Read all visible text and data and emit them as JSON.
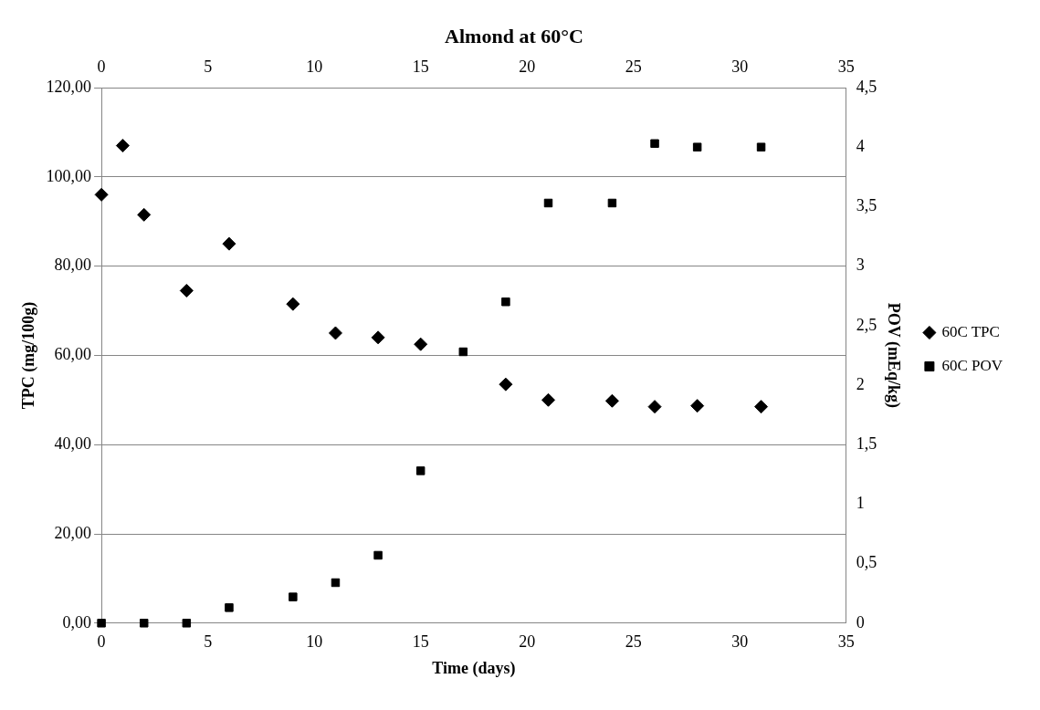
{
  "chart_data": {
    "type": "scatter",
    "title": "Almond at 60°C",
    "xlabel": "Time (days)",
    "ylabel": "TPC (mg/100g)",
    "y2label": "POV (mEq/kg)",
    "series": [
      {
        "name": "60C TPC",
        "color": "#000000",
        "marker": "diamond",
        "x": [
          0,
          1,
          2,
          4,
          6,
          9,
          11,
          13,
          15,
          17,
          19,
          21,
          24,
          26,
          28,
          31
        ],
        "values": [
          96,
          107,
          91.5,
          74.5,
          85,
          71.5,
          65,
          64,
          62.5,
          null,
          53.5,
          50,
          49.8,
          48.5,
          48.7,
          48.5
        ]
      },
      {
        "name": "60C POV",
        "color": "#000000",
        "marker": "square",
        "axis": "y2",
        "x": [
          0,
          2,
          4,
          6,
          9,
          11,
          13,
          15,
          17,
          19,
          21,
          24,
          26,
          28,
          31
        ],
        "values": [
          0,
          0,
          0,
          0.13,
          0.22,
          0.34,
          0.57,
          1.28,
          2.28,
          2.7,
          3.53,
          3.53,
          4.03,
          4.0,
          4.0
        ]
      }
    ],
    "xlim": [
      0,
      35
    ],
    "xticks": [
      0,
      5,
      10,
      15,
      20,
      25,
      30,
      35
    ],
    "x2lim": [
      0,
      35
    ],
    "x2ticks": [
      0,
      5,
      10,
      15,
      20,
      25,
      30,
      35
    ],
    "ylim": [
      0,
      120
    ],
    "yticks": [
      {
        "value": 0,
        "label": "0,00"
      },
      {
        "value": 20,
        "label": "20,00"
      },
      {
        "value": 40,
        "label": "40,00"
      },
      {
        "value": 60,
        "label": "60,00"
      },
      {
        "value": 80,
        "label": "80,00"
      },
      {
        "value": 100,
        "label": "100,00"
      },
      {
        "value": 120,
        "label": "120,00"
      }
    ],
    "y2lim": [
      0,
      4.5
    ],
    "y2ticks": [
      0,
      {
        "value": 0.5,
        "label": "0,5"
      },
      1,
      {
        "value": 1.5,
        "label": "1,5"
      },
      2,
      {
        "value": 2.5,
        "label": "2,5"
      },
      3,
      {
        "value": 3.5,
        "label": "3,5"
      },
      4,
      {
        "value": 4.5,
        "label": "4,5"
      }
    ],
    "grid": "y",
    "legend": "right"
  }
}
